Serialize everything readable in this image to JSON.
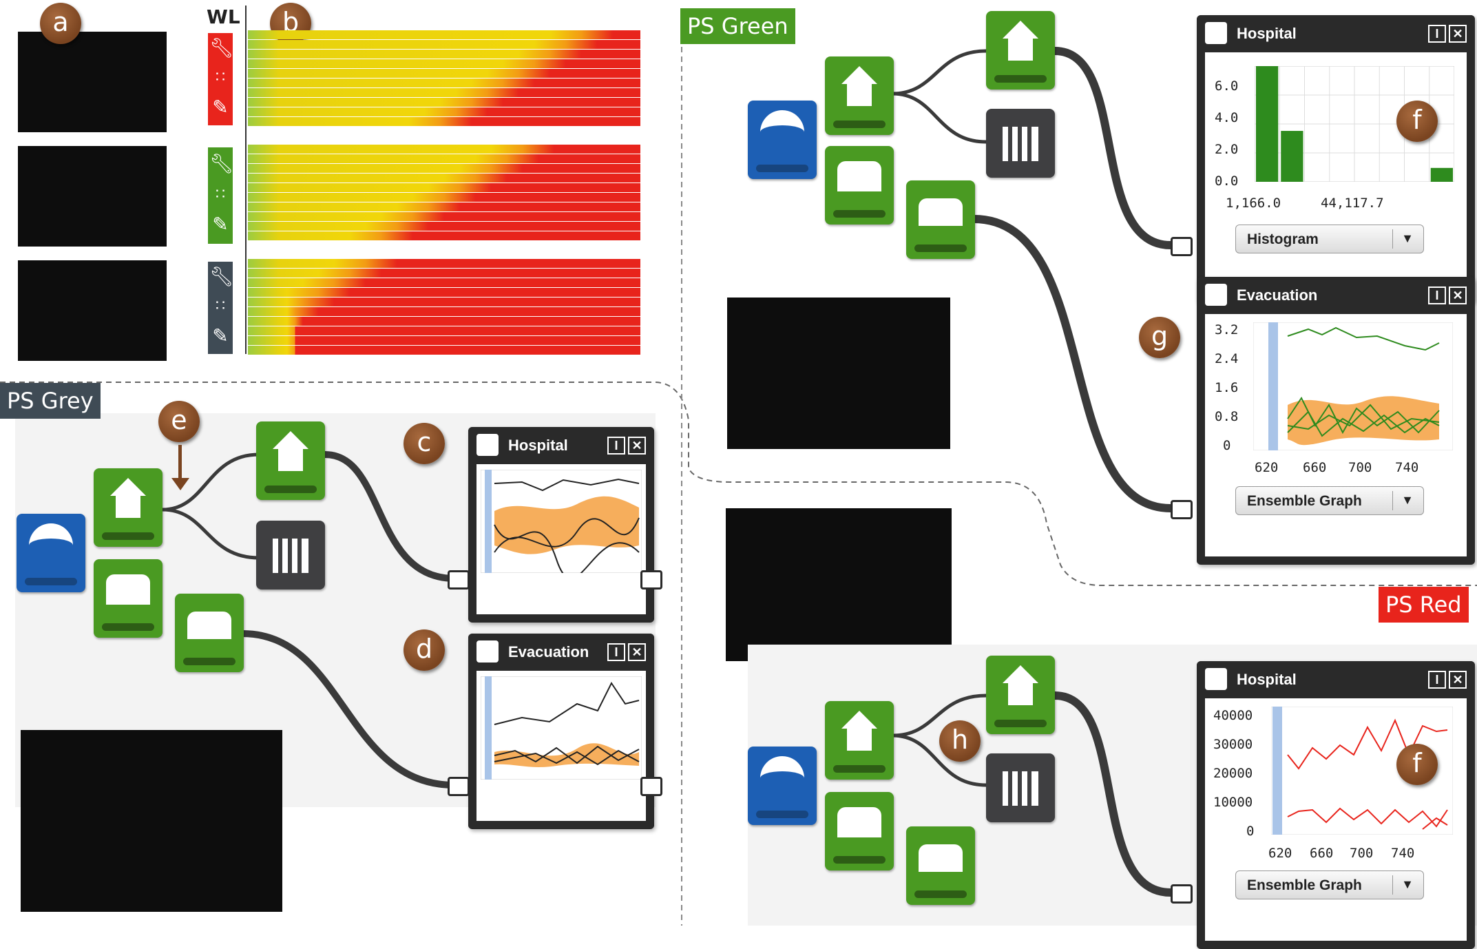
{
  "badges": {
    "a": "a",
    "b": "b",
    "c": "c",
    "d": "d",
    "e": "e",
    "f": "f",
    "g": "g",
    "h": "h"
  },
  "ps_labels": {
    "grey": "PS Grey",
    "green": "PS Green",
    "red": "PS Red"
  },
  "colors": {
    "ps_grey": "#3f4b55",
    "ps_green": "#4a9a22",
    "ps_red": "#e8241c",
    "badge": "#8a5228",
    "node_green": "#4a9a22",
    "node_dark": "#3f3f41",
    "node_blue": "#1d5fb4",
    "series_green": "#2e8b1e",
    "series_red": "#e8241c",
    "band_orange": "#f5a040"
  },
  "world_lines": {
    "header": "WL"
  },
  "grey_panel": {
    "hospital_view": {
      "title": "Hospital"
    },
    "evacuation_view": {
      "title": "Evacuation"
    }
  },
  "green_panel": {
    "hospital_view": {
      "title": "Hospital",
      "y_ticks": [
        "6.0",
        "4.0",
        "2.0",
        "0.0"
      ],
      "x_ticks": [
        "1,166.0",
        "44,117.7"
      ],
      "dropdown": "Histogram"
    },
    "evacuation_view": {
      "title": "Evacuation",
      "y_ticks": [
        "3.2",
        "2.4",
        "1.6",
        "0.8",
        "0"
      ],
      "x_ticks": [
        "620",
        "660",
        "700",
        "740"
      ],
      "dropdown": "Ensemble Graph"
    }
  },
  "red_panel": {
    "hospital_view": {
      "title": "Hospital",
      "y_ticks": [
        "40000",
        "30000",
        "20000",
        "10000",
        "0"
      ],
      "x_ticks": [
        "620",
        "660",
        "700",
        "740"
      ],
      "dropdown": "Ensemble Graph"
    }
  },
  "icons": [
    "wave-icon",
    "house-icon",
    "house-cursor-icon",
    "histogram-icon",
    "water-level-icon",
    "water-drop-icon",
    "wrench-icon",
    "grid-dots-icon",
    "brush-icon",
    "hospital-cross-icon",
    "dropdown-arrow-icon",
    "split-view-icon",
    "close-icon"
  ]
}
